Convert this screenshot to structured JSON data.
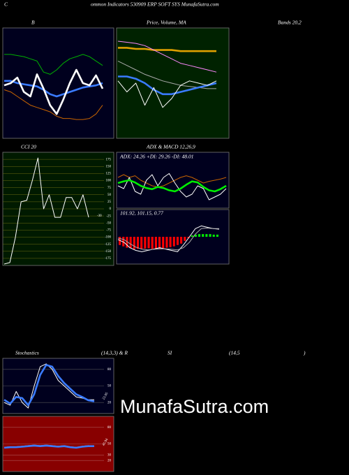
{
  "header": {
    "letter": "C",
    "title": "ommon  Indicators 530909 ERP SOFT SYS MunafaSutra.com"
  },
  "watermark": "MunafaSutra.com",
  "chart_data": [
    {
      "type": "line",
      "title": "B",
      "subtitle": "Bands 20,2",
      "background": "#00001e",
      "ylim": [
        0,
        100
      ],
      "series": [
        {
          "color": "#00b000",
          "values": [
            76,
            76,
            75,
            74,
            72,
            70,
            60,
            58,
            62,
            68,
            72,
            74,
            76,
            74,
            70,
            66
          ]
        },
        {
          "color": "#c86400",
          "values": [
            44,
            42,
            38,
            34,
            30,
            28,
            26,
            24,
            20,
            18,
            18,
            17,
            17,
            18,
            22,
            30
          ]
        },
        {
          "color": "#3a7bff",
          "thick": true,
          "values": [
            52,
            52,
            50,
            49,
            48,
            47,
            44,
            40,
            38,
            40,
            42,
            44,
            46,
            47,
            48,
            50
          ]
        },
        {
          "color": "#ffffff",
          "thick": true,
          "values": [
            48,
            50,
            55,
            42,
            38,
            58,
            45,
            30,
            22,
            35,
            50,
            62,
            50,
            48,
            57,
            45
          ]
        }
      ]
    },
    {
      "type": "line",
      "title": "Price,  Volume,  MA",
      "background": "#002200",
      "ylim": [
        0,
        100
      ],
      "series": [
        {
          "color": "#e0a000",
          "thick": true,
          "values": [
            82,
            82,
            81,
            81,
            80,
            80,
            80,
            79,
            79,
            79,
            79,
            79
          ]
        },
        {
          "color": "#ff88ff",
          "values": [
            88,
            87,
            86,
            84,
            80,
            76,
            72,
            68,
            66,
            64,
            62,
            60
          ]
        },
        {
          "color": "#aaaaaa",
          "values": [
            70,
            66,
            62,
            58,
            55,
            52,
            50,
            48,
            47,
            46,
            45,
            45
          ]
        },
        {
          "color": "#3a7bff",
          "thick": true,
          "values": [
            56,
            56,
            54,
            50,
            44,
            40,
            40,
            42,
            44,
            46,
            48,
            50
          ]
        },
        {
          "color": "#ffffff",
          "values": [
            52,
            42,
            50,
            30,
            46,
            28,
            36,
            48,
            52,
            50,
            48,
            52
          ]
        }
      ]
    },
    {
      "type": "line",
      "title": "CCI 20",
      "background": "#001a00",
      "grid_color": "#6b6b10",
      "ylim": [
        -200,
        200
      ],
      "yticks": [
        175,
        150,
        125,
        100,
        75,
        50,
        25,
        0,
        -25,
        -50,
        -75,
        -100,
        -125,
        -150,
        -175
      ],
      "series": [
        {
          "color": "#ffffff",
          "values": [
            -195,
            -190,
            -100,
            25,
            30,
            100,
            180,
            0,
            50,
            -30,
            -30,
            40,
            40,
            0,
            50,
            -30
          ]
        }
      ]
    },
    {
      "type": "line",
      "title": "ADX  & MACD 12,26,9",
      "annotation": "ADX: 24.26  +DI: 29.26  -DI: 48.01",
      "background": "#00001e",
      "ylim": [
        0,
        100
      ],
      "series": [
        {
          "color": "#c86400",
          "values": [
            55,
            60,
            55,
            58,
            50,
            45,
            40,
            38,
            40,
            45,
            50,
            55,
            58,
            55,
            50,
            45,
            48,
            50,
            52,
            55
          ]
        },
        {
          "color": "#ffffff",
          "values": [
            40,
            35,
            55,
            30,
            25,
            50,
            60,
            40,
            55,
            62,
            45,
            30,
            20,
            25,
            40,
            35,
            15,
            20,
            25,
            35
          ]
        },
        {
          "color": "#00ee00",
          "thick": true,
          "values": [
            45,
            48,
            50,
            46,
            40,
            36,
            34,
            38,
            36,
            32,
            30,
            35,
            42,
            48,
            46,
            38,
            32,
            30,
            34,
            40
          ]
        }
      ]
    },
    {
      "type": "line",
      "annotation": "101.92,  101.15,  0.77",
      "background": "#00001e",
      "ylim": [
        -1,
        1
      ],
      "histogram": {
        "positive": "#00ee00",
        "negative": "#ff0000",
        "values": [
          -0.3,
          -0.35,
          -0.4,
          -0.42,
          -0.45,
          -0.44,
          -0.45,
          -0.43,
          -0.42,
          -0.44,
          -0.45,
          -0.44,
          -0.42,
          -0.4,
          -0.38,
          -0.35,
          -0.3,
          -0.25,
          -0.15,
          -0.05,
          0.05,
          0.08,
          0.1,
          0.1,
          0.1,
          0.1,
          0.08,
          0.08
        ]
      },
      "series": [
        {
          "color": "#ffffff",
          "values": [
            -0.1,
            -0.2,
            -0.4,
            -0.5,
            -0.55,
            -0.5,
            -0.45,
            -0.4,
            -0.45,
            -0.5,
            -0.55,
            -0.3,
            0,
            0.3,
            0.4,
            0.35,
            0.3,
            0.28
          ]
        },
        {
          "color": "#aaaaaa",
          "values": [
            -0.05,
            -0.1,
            -0.25,
            -0.38,
            -0.45,
            -0.48,
            -0.46,
            -0.44,
            -0.44,
            -0.46,
            -0.48,
            -0.4,
            -0.2,
            0.1,
            0.3,
            0.32,
            0.3,
            0.3
          ]
        }
      ]
    },
    {
      "type": "line",
      "title": "Stochastics",
      "subtitle": "(14,3,3) & R",
      "background": "#00001e",
      "grid_color": "#555555",
      "ylim": [
        0,
        100
      ],
      "yticks": [
        80,
        50,
        20
      ],
      "series": [
        {
          "color": "#ffffff",
          "values": [
            20,
            15,
            40,
            20,
            10,
            50,
            85,
            90,
            80,
            60,
            50,
            40,
            30,
            28,
            25,
            25
          ]
        },
        {
          "color": "#3a7bff",
          "thick": true,
          "values": [
            25,
            18,
            30,
            28,
            15,
            35,
            70,
            88,
            85,
            68,
            55,
            45,
            35,
            30,
            24,
            22.05
          ]
        }
      ]
    },
    {
      "type": "line",
      "title": "SI",
      "subtitle": "(14,5",
      "annotation": ")",
      "background": "#880000",
      "grid_color": "#aa5555",
      "ylim": [
        0,
        100
      ],
      "yticks": [
        80,
        50,
        30,
        20
      ],
      "series": [
        {
          "color": "#aaaaaa",
          "values": [
            44,
            45,
            45,
            46,
            47,
            48,
            47,
            48,
            47,
            46,
            47,
            45,
            44,
            46,
            47,
            46
          ]
        },
        {
          "color": "#3a7bff",
          "thick": true,
          "values": [
            43,
            44,
            44,
            45,
            46,
            47,
            46,
            47,
            46,
            45,
            46,
            44,
            43,
            45,
            46,
            45.94
          ]
        }
      ]
    }
  ]
}
